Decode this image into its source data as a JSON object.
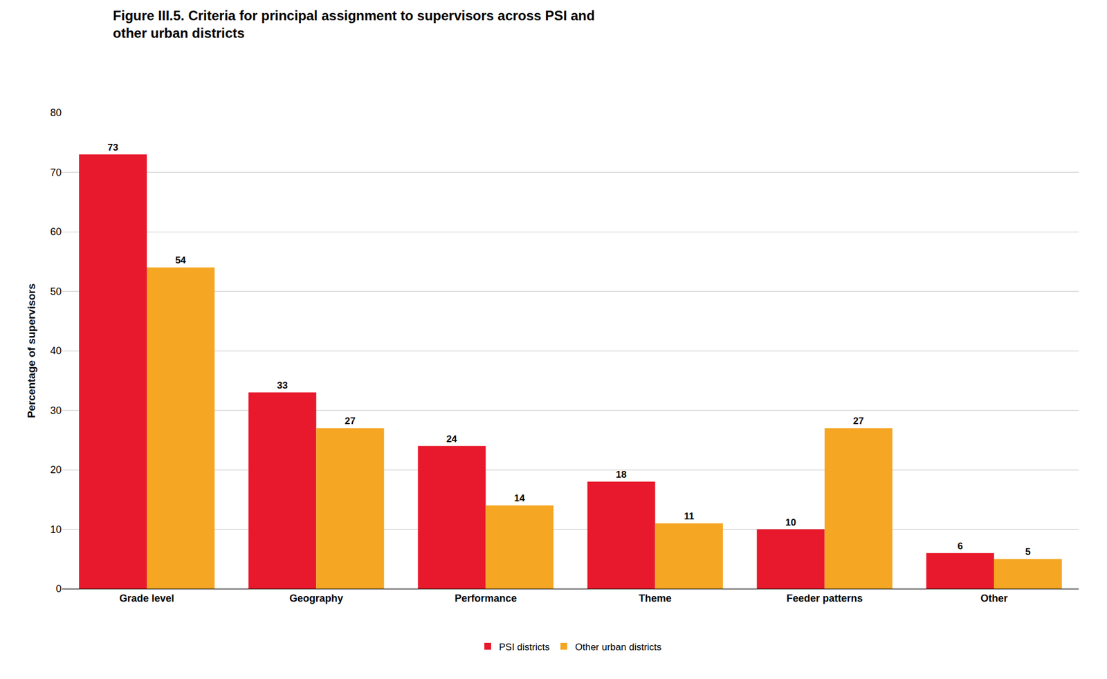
{
  "chart_data": {
    "type": "bar",
    "title": "Figure III.5. Criteria for principal assignment to supervisors across PSI and\nother urban districts",
    "ylabel": "Percentage of supervisors",
    "categories": [
      "Grade level",
      "Geography",
      "Performance",
      "Theme",
      "Feeder patterns",
      "Other"
    ],
    "series": [
      {
        "name": "PSI districts",
        "color": "#E8192C",
        "values": [
          73,
          33,
          24,
          18,
          10,
          6
        ]
      },
      {
        "name": "Other urban districts",
        "color": "#F5A623",
        "values": [
          54,
          27,
          14,
          11,
          27,
          5
        ]
      }
    ],
    "ylim": [
      0,
      80
    ],
    "yticks": [
      0,
      10,
      20,
      30,
      40,
      50,
      60,
      70,
      80
    ],
    "grid": true,
    "legend": "bottom",
    "data_labels": true
  }
}
